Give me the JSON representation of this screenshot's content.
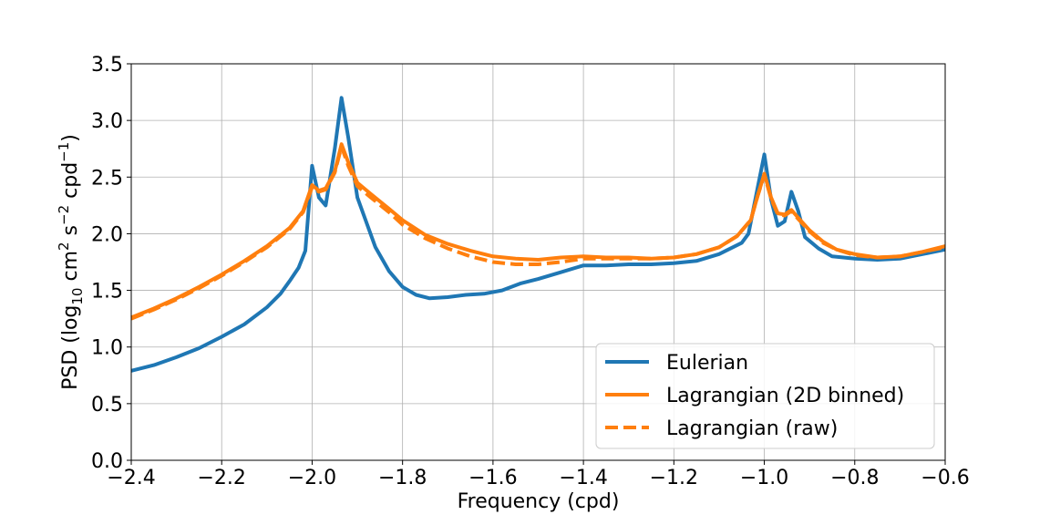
{
  "chart_data": {
    "type": "line",
    "title": "",
    "xlabel": "Frequency (cpd)",
    "ylabel": {
      "prefix": "PSD (log",
      "prefix_sub": "10",
      "unit1": " cm",
      "unit1_sup": "2",
      "unit2": " s",
      "unit2_sup": "−2",
      "unit3": " cpd",
      "unit3_sup": "−1",
      "suffix": ")"
    },
    "xlim": [
      -2.4,
      -0.6
    ],
    "ylim": [
      0.0,
      3.5
    ],
    "xticks": [
      -2.4,
      -2.2,
      -2.0,
      -1.8,
      -1.6,
      -1.4,
      -1.2,
      -1.0,
      -0.8,
      -0.6
    ],
    "xtick_labels": [
      "−2.4",
      "−2.2",
      "−2.0",
      "−1.8",
      "−1.6",
      "−1.4",
      "−1.2",
      "−1.0",
      "−0.8",
      "−0.6"
    ],
    "yticks": [
      0.0,
      0.5,
      1.0,
      1.5,
      2.0,
      2.5,
      3.0,
      3.5
    ],
    "ytick_labels": [
      "0.0",
      "0.5",
      "1.0",
      "1.5",
      "2.0",
      "2.5",
      "3.0",
      "3.5"
    ],
    "grid": true,
    "legend_position": "bottom-right",
    "series": [
      {
        "name": "Eulerian",
        "color": "#1f77b4",
        "style": "solid",
        "points": [
          [
            -2.4,
            0.79
          ],
          [
            -2.35,
            0.84
          ],
          [
            -2.3,
            0.91
          ],
          [
            -2.25,
            0.99
          ],
          [
            -2.2,
            1.09
          ],
          [
            -2.15,
            1.2
          ],
          [
            -2.1,
            1.35
          ],
          [
            -2.07,
            1.47
          ],
          [
            -2.05,
            1.58
          ],
          [
            -2.03,
            1.7
          ],
          [
            -2.015,
            1.85
          ],
          [
            -2.0,
            2.6
          ],
          [
            -1.985,
            2.32
          ],
          [
            -1.97,
            2.25
          ],
          [
            -1.95,
            2.75
          ],
          [
            -1.935,
            3.2
          ],
          [
            -1.92,
            2.85
          ],
          [
            -1.9,
            2.32
          ],
          [
            -1.88,
            2.1
          ],
          [
            -1.86,
            1.88
          ],
          [
            -1.83,
            1.67
          ],
          [
            -1.8,
            1.53
          ],
          [
            -1.77,
            1.46
          ],
          [
            -1.74,
            1.43
          ],
          [
            -1.7,
            1.44
          ],
          [
            -1.66,
            1.46
          ],
          [
            -1.62,
            1.47
          ],
          [
            -1.58,
            1.5
          ],
          [
            -1.54,
            1.56
          ],
          [
            -1.5,
            1.6
          ],
          [
            -1.45,
            1.66
          ],
          [
            -1.4,
            1.72
          ],
          [
            -1.35,
            1.72
          ],
          [
            -1.3,
            1.73
          ],
          [
            -1.25,
            1.73
          ],
          [
            -1.2,
            1.74
          ],
          [
            -1.15,
            1.76
          ],
          [
            -1.1,
            1.82
          ],
          [
            -1.05,
            1.92
          ],
          [
            -1.035,
            2.0
          ],
          [
            -1.015,
            2.4
          ],
          [
            -1.0,
            2.7
          ],
          [
            -0.985,
            2.3
          ],
          [
            -0.97,
            2.07
          ],
          [
            -0.955,
            2.11
          ],
          [
            -0.94,
            2.37
          ],
          [
            -0.925,
            2.2
          ],
          [
            -0.91,
            1.97
          ],
          [
            -0.88,
            1.87
          ],
          [
            -0.85,
            1.8
          ],
          [
            -0.8,
            1.78
          ],
          [
            -0.75,
            1.77
          ],
          [
            -0.7,
            1.78
          ],
          [
            -0.65,
            1.82
          ],
          [
            -0.6,
            1.86
          ]
        ]
      },
      {
        "name": "Lagrangian (2D binned)",
        "color": "#ff7f0e",
        "style": "solid",
        "points": [
          [
            -2.4,
            1.26
          ],
          [
            -2.35,
            1.34
          ],
          [
            -2.3,
            1.43
          ],
          [
            -2.25,
            1.53
          ],
          [
            -2.2,
            1.64
          ],
          [
            -2.15,
            1.76
          ],
          [
            -2.1,
            1.89
          ],
          [
            -2.05,
            2.05
          ],
          [
            -2.02,
            2.2
          ],
          [
            -2.0,
            2.43
          ],
          [
            -1.985,
            2.38
          ],
          [
            -1.97,
            2.4
          ],
          [
            -1.95,
            2.55
          ],
          [
            -1.935,
            2.79
          ],
          [
            -1.92,
            2.63
          ],
          [
            -1.9,
            2.45
          ],
          [
            -1.87,
            2.35
          ],
          [
            -1.83,
            2.22
          ],
          [
            -1.8,
            2.12
          ],
          [
            -1.75,
            1.99
          ],
          [
            -1.7,
            1.91
          ],
          [
            -1.65,
            1.85
          ],
          [
            -1.6,
            1.8
          ],
          [
            -1.55,
            1.78
          ],
          [
            -1.5,
            1.77
          ],
          [
            -1.45,
            1.79
          ],
          [
            -1.4,
            1.8
          ],
          [
            -1.35,
            1.79
          ],
          [
            -1.3,
            1.79
          ],
          [
            -1.25,
            1.78
          ],
          [
            -1.2,
            1.79
          ],
          [
            -1.15,
            1.82
          ],
          [
            -1.1,
            1.88
          ],
          [
            -1.06,
            1.98
          ],
          [
            -1.03,
            2.12
          ],
          [
            -1.015,
            2.33
          ],
          [
            -1.0,
            2.53
          ],
          [
            -0.985,
            2.32
          ],
          [
            -0.97,
            2.18
          ],
          [
            -0.955,
            2.17
          ],
          [
            -0.94,
            2.21
          ],
          [
            -0.925,
            2.14
          ],
          [
            -0.9,
            2.03
          ],
          [
            -0.87,
            1.93
          ],
          [
            -0.84,
            1.86
          ],
          [
            -0.8,
            1.82
          ],
          [
            -0.75,
            1.79
          ],
          [
            -0.7,
            1.8
          ],
          [
            -0.65,
            1.84
          ],
          [
            -0.6,
            1.89
          ]
        ]
      },
      {
        "name": "Lagrangian (raw)",
        "color": "#ff7f0e",
        "style": "dashed",
        "points": [
          [
            -2.4,
            1.25
          ],
          [
            -2.35,
            1.33
          ],
          [
            -2.3,
            1.42
          ],
          [
            -2.25,
            1.52
          ],
          [
            -2.2,
            1.63
          ],
          [
            -2.15,
            1.75
          ],
          [
            -2.1,
            1.88
          ],
          [
            -2.05,
            2.04
          ],
          [
            -2.02,
            2.19
          ],
          [
            -2.0,
            2.41
          ],
          [
            -1.985,
            2.37
          ],
          [
            -1.97,
            2.39
          ],
          [
            -1.95,
            2.54
          ],
          [
            -1.935,
            2.77
          ],
          [
            -1.92,
            2.6
          ],
          [
            -1.9,
            2.42
          ],
          [
            -1.87,
            2.32
          ],
          [
            -1.83,
            2.19
          ],
          [
            -1.8,
            2.08
          ],
          [
            -1.75,
            1.96
          ],
          [
            -1.7,
            1.87
          ],
          [
            -1.65,
            1.8
          ],
          [
            -1.6,
            1.75
          ],
          [
            -1.55,
            1.73
          ],
          [
            -1.5,
            1.73
          ],
          [
            -1.45,
            1.75
          ],
          [
            -1.4,
            1.78
          ],
          [
            -1.35,
            1.78
          ],
          [
            -1.3,
            1.78
          ],
          [
            -1.25,
            1.78
          ],
          [
            -1.2,
            1.79
          ],
          [
            -1.15,
            1.82
          ],
          [
            -1.1,
            1.88
          ],
          [
            -1.06,
            1.98
          ],
          [
            -1.03,
            2.12
          ],
          [
            -1.015,
            2.33
          ],
          [
            -1.0,
            2.52
          ],
          [
            -0.985,
            2.31
          ],
          [
            -0.97,
            2.17
          ],
          [
            -0.955,
            2.16
          ],
          [
            -0.94,
            2.2
          ],
          [
            -0.925,
            2.13
          ],
          [
            -0.9,
            2.02
          ],
          [
            -0.87,
            1.92
          ],
          [
            -0.84,
            1.86
          ],
          [
            -0.8,
            1.81
          ],
          [
            -0.75,
            1.79
          ],
          [
            -0.7,
            1.8
          ],
          [
            -0.65,
            1.84
          ],
          [
            -0.6,
            1.88
          ]
        ]
      }
    ]
  }
}
